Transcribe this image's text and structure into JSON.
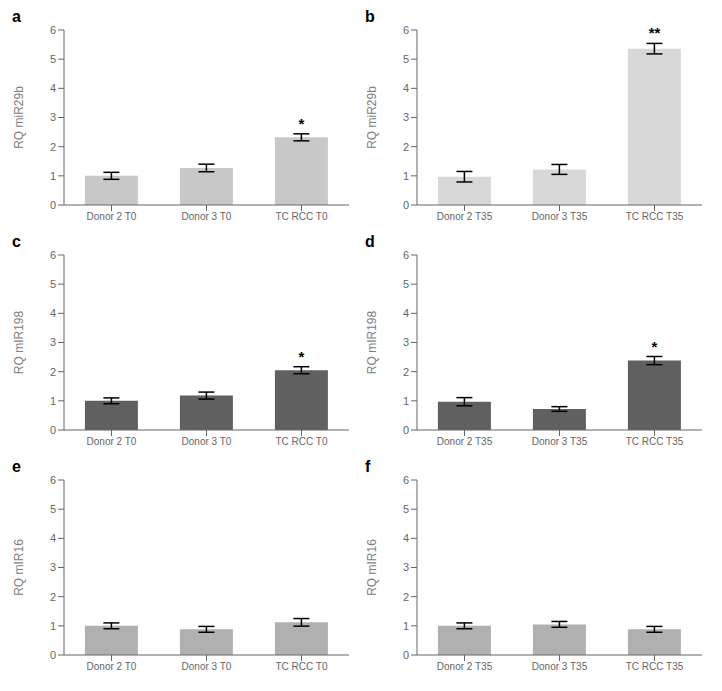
{
  "chart_data": [
    {
      "type": "bar",
      "title": "a",
      "ylabel": "RQ miR29b",
      "categories": [
        "Donor 2 T0",
        "Donor 3 T0",
        "TC RCC T0"
      ],
      "values": [
        1.0,
        1.27,
        2.32
      ],
      "errors": [
        0.12,
        0.13,
        0.12
      ],
      "color": "#c8c8c8",
      "annotations": [
        {
          "x": "TC RCC T0",
          "text": "*"
        }
      ],
      "ylim": [
        0,
        6
      ],
      "yticks": [
        0,
        1,
        2,
        3,
        4,
        5,
        6
      ],
      "grid": false
    },
    {
      "type": "bar",
      "title": "b",
      "ylabel": "RQ miR29b",
      "categories": [
        "Donor 2 T35",
        "Donor 3 T35",
        "TC RCC T35"
      ],
      "values": [
        0.97,
        1.22,
        5.36
      ],
      "errors": [
        0.18,
        0.17,
        0.18
      ],
      "color": "#d8d8d8",
      "annotations": [
        {
          "x": "TC RCC T35",
          "text": "**"
        }
      ],
      "ylim": [
        0,
        6
      ],
      "yticks": [
        0,
        1,
        2,
        3,
        4,
        5,
        6
      ],
      "grid": false
    },
    {
      "type": "bar",
      "title": "c",
      "ylabel": "RQ mIR198",
      "categories": [
        "Donor 2 T0",
        "Donor 3 T0",
        "TC RCC T0"
      ],
      "values": [
        1.0,
        1.18,
        2.05
      ],
      "errors": [
        0.1,
        0.12,
        0.12
      ],
      "color": "#606060",
      "annotations": [
        {
          "x": "TC RCC T0",
          "text": "*"
        }
      ],
      "ylim": [
        0,
        6
      ],
      "yticks": [
        0,
        1,
        2,
        3,
        4,
        5,
        6
      ],
      "grid": false
    },
    {
      "type": "bar",
      "title": "d",
      "ylabel": "RQ mIR198",
      "categories": [
        "Donor 2 T35",
        "Donor 3 T35",
        "TC RCC T35"
      ],
      "values": [
        0.97,
        0.72,
        2.38
      ],
      "errors": [
        0.14,
        0.08,
        0.14
      ],
      "color": "#606060",
      "annotations": [
        {
          "x": "TC RCC T35",
          "text": "*"
        }
      ],
      "ylim": [
        0,
        6
      ],
      "yticks": [
        0,
        1,
        2,
        3,
        4,
        5,
        6
      ],
      "grid": false
    },
    {
      "type": "bar",
      "title": "e",
      "ylabel": "RQ mIR16",
      "categories": [
        "Donor 2 T0",
        "Donor 3 T0",
        "TC RCC T0"
      ],
      "values": [
        1.0,
        0.88,
        1.12
      ],
      "errors": [
        0.1,
        0.1,
        0.13
      ],
      "color": "#b0b0b0",
      "annotations": [],
      "ylim": [
        0,
        6
      ],
      "yticks": [
        0,
        1,
        2,
        3,
        4,
        5,
        6
      ],
      "grid": false
    },
    {
      "type": "bar",
      "title": "f",
      "ylabel": "RQ mIR16",
      "categories": [
        "Donor 2 T35",
        "Donor 3 T35",
        "TC RCC T35"
      ],
      "values": [
        1.0,
        1.05,
        0.88
      ],
      "errors": [
        0.1,
        0.1,
        0.1
      ],
      "color": "#b0b0b0",
      "annotations": [],
      "ylim": [
        0,
        6
      ],
      "yticks": [
        0,
        1,
        2,
        3,
        4,
        5,
        6
      ],
      "grid": false
    }
  ]
}
